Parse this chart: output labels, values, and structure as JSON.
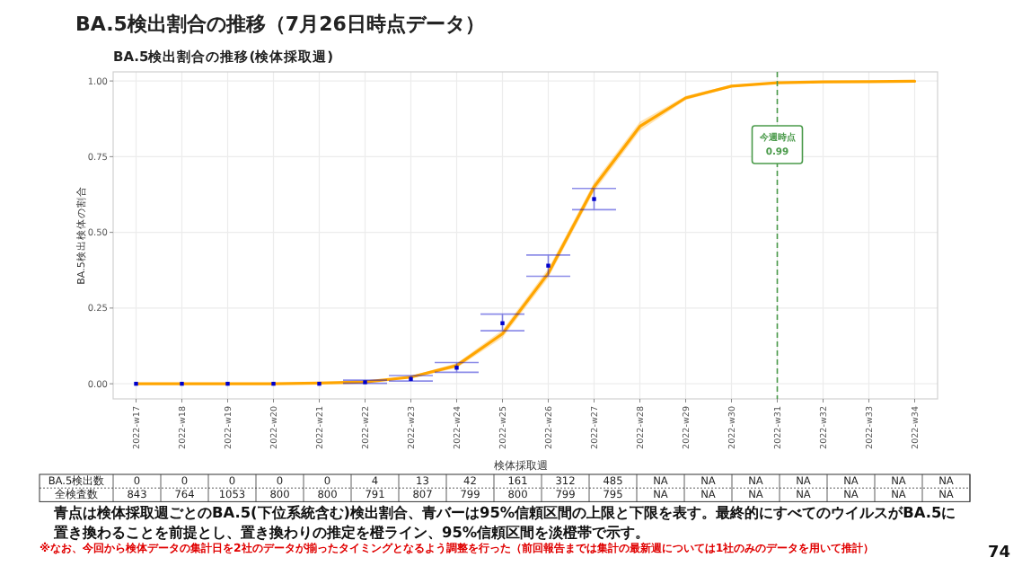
{
  "chart_data": {
    "type": "line",
    "title": "BA.5検出割合の推移（7月26日時点データ）",
    "subtitle": "BA.5検出割合の推移(検体採取週)",
    "xlabel": "検体採取週",
    "ylabel": "BA.5検出検体の割合",
    "categories": [
      "2022-w17",
      "2022-w18",
      "2022-w19",
      "2022-w20",
      "2022-w21",
      "2022-w22",
      "2022-w23",
      "2022-w24",
      "2022-w25",
      "2022-w26",
      "2022-w27",
      "2022-w28",
      "2022-w29",
      "2022-w30",
      "2022-w31",
      "2022-w32",
      "2022-w33",
      "2022-w34"
    ],
    "ylim": [
      -0.05,
      1.03
    ],
    "yticks": [
      {
        "value": 0,
        "label": "0.00"
      },
      {
        "value": 0.25,
        "label": "0.25"
      },
      {
        "value": 0.5,
        "label": "0.50"
      },
      {
        "value": 0.75,
        "label": "0.75"
      },
      {
        "value": 1,
        "label": "1.00"
      }
    ],
    "grid": true,
    "series": [
      {
        "color": "#ffa500",
        "values": [
          0,
          0,
          0,
          0,
          0.002,
          0.006,
          0.022,
          0.06,
          0.165,
          0.365,
          0.65,
          0.85,
          0.944,
          0.983,
          0.994,
          0.997,
          0.998,
          0.999
        ],
        "lower": [
          0,
          0,
          0,
          0,
          0.001,
          0.004,
          0.018,
          0.052,
          0.152,
          0.35,
          0.635,
          0.835,
          0.937,
          0.979,
          0.992,
          0.996,
          0.997,
          0.998
        ],
        "upper": [
          0,
          0,
          0,
          0,
          0.003,
          0.008,
          0.026,
          0.068,
          0.178,
          0.38,
          0.665,
          0.865,
          0.951,
          0.987,
          0.996,
          0.998,
          0.999,
          1
        ]
      },
      {
        "type": "scatter",
        "color": "#0000cc",
        "marker": "square",
        "values": [
          0,
          0,
          0,
          0,
          0,
          0.005,
          0.016,
          0.053,
          0.2,
          0.39,
          0.61,
          null,
          null,
          null,
          null,
          null,
          null,
          null
        ],
        "errors": [
          null,
          null,
          null,
          null,
          null,
          [
            0.0015,
            0.012
          ],
          [
            0.009,
            0.027
          ],
          [
            0.038,
            0.07
          ],
          [
            0.175,
            0.23
          ],
          [
            0.355,
            0.425
          ],
          [
            0.575,
            0.645
          ],
          null,
          null,
          null,
          null,
          null,
          null,
          null
        ]
      }
    ],
    "ref_lines": [
      {
        "axis": "x",
        "value": "2022-w31",
        "label": "今週時点\n0.99",
        "color": "#4a9a4a",
        "line_style": "dashed"
      }
    ],
    "annotations": [
      "青点は検体採取週ごとのBA.5(下位系統含む)検出割合、青バーは95%信頼区間の上限と下限を表す。最終的にすべてのウイルスがBA.5に置き換わることを前提とし、置き換わりの推定を橙ライン、95%信頼区間を淡橙帯で示す。",
      "※なお、今回から検体データの集計日を2社のデータが揃ったタイミングとなるよう調整を行った（前回報告までは集計の最新週については1社のみのデータを用いて推計）",
      "74",
      "BA.5検出数",
      "0",
      "0",
      "0",
      "0",
      "0",
      "4",
      "13",
      "42",
      "161",
      "312",
      "485",
      "NA",
      "NA",
      "NA",
      "NA",
      "NA",
      "NA",
      "NA",
      "全検査数",
      "843",
      "764",
      "1053",
      "800",
      "800",
      "791",
      "807",
      "799",
      "800",
      "799",
      "795",
      "NA",
      "NA",
      "NA",
      "NA",
      "NA",
      "NA",
      "NA"
    ]
  }
}
